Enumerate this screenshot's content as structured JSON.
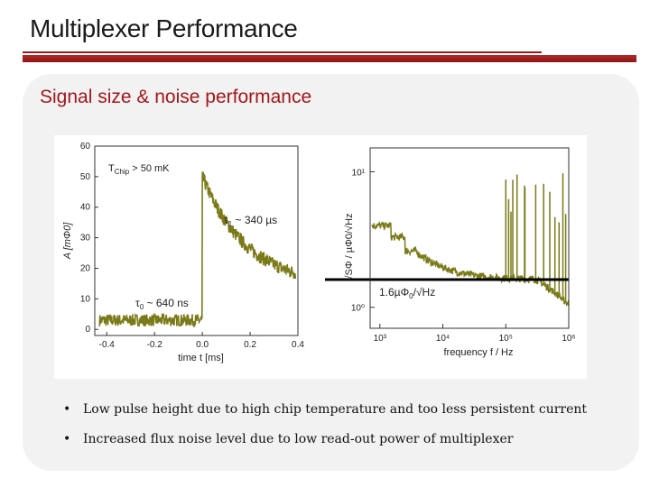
{
  "slide": {
    "title": "Multiplexer Performance",
    "subtitle": "Signal size & noise performance",
    "accent_color": "#a3161a"
  },
  "bullets": [
    "Low pulse height due to high chip temperature and too less persistent current",
    "Increased flux noise level due to low read-out power of multiplexer"
  ],
  "chart_data": [
    {
      "type": "line",
      "title": "",
      "xlabel": "time t [ms]",
      "ylabel": "A [mΦ0]",
      "xlim": [
        -0.45,
        0.4
      ],
      "ylim": [
        -2,
        60
      ],
      "x_ticks": [
        -0.4,
        -0.2,
        0.0,
        0.2,
        0.4
      ],
      "x_tick_labels": [
        "-0.4",
        "-0.2",
        "0.0",
        "0.2",
        "0.4"
      ],
      "y_ticks": [
        0,
        10,
        20,
        30,
        40,
        50,
        60
      ],
      "y_tick_labels": [
        "0",
        "10",
        "20",
        "30",
        "40",
        "50",
        "60"
      ],
      "series_color": "#7a7a18",
      "pulse": {
        "t0": 0.0,
        "baseline": 3,
        "peak": 50,
        "tau_decay_ms": 0.34,
        "tail_level": 14
      },
      "annotations": {
        "temperature": "T",
        "temperature_sub": "Chip",
        "temperature_rest": " > 50 mK",
        "tau1": "τ",
        "tau1_sub": "1",
        "tau1_rest": " ~ 340 µs",
        "tau0": "τ",
        "tau0_sub": "0",
        "tau0_rest": " ~ 640 ns"
      }
    },
    {
      "type": "line",
      "title": "",
      "xlabel": "frequency f / Hz",
      "ylabel": "√SΦ / µΦ0/√Hz",
      "x_scale": "log",
      "y_scale": "log",
      "xlim": [
        1000,
        1000000
      ],
      "x_tick_labels": [
        "10³",
        "10⁴",
        "10⁵",
        "10⁶"
      ],
      "y_tick_labels": [
        "10⁰",
        "10¹"
      ],
      "series_color": "#7a7a18",
      "reference_line": {
        "value": 1.6,
        "label": "1.6µΦ",
        "label_sub": "0",
        "label_rest": "/√Hz",
        "color": "#000000"
      },
      "peak_frequencies": [
        100000,
        110000,
        120000,
        130000,
        150000,
        200000,
        300000,
        400000,
        500000,
        600000,
        700000,
        800000,
        900000
      ]
    }
  ]
}
